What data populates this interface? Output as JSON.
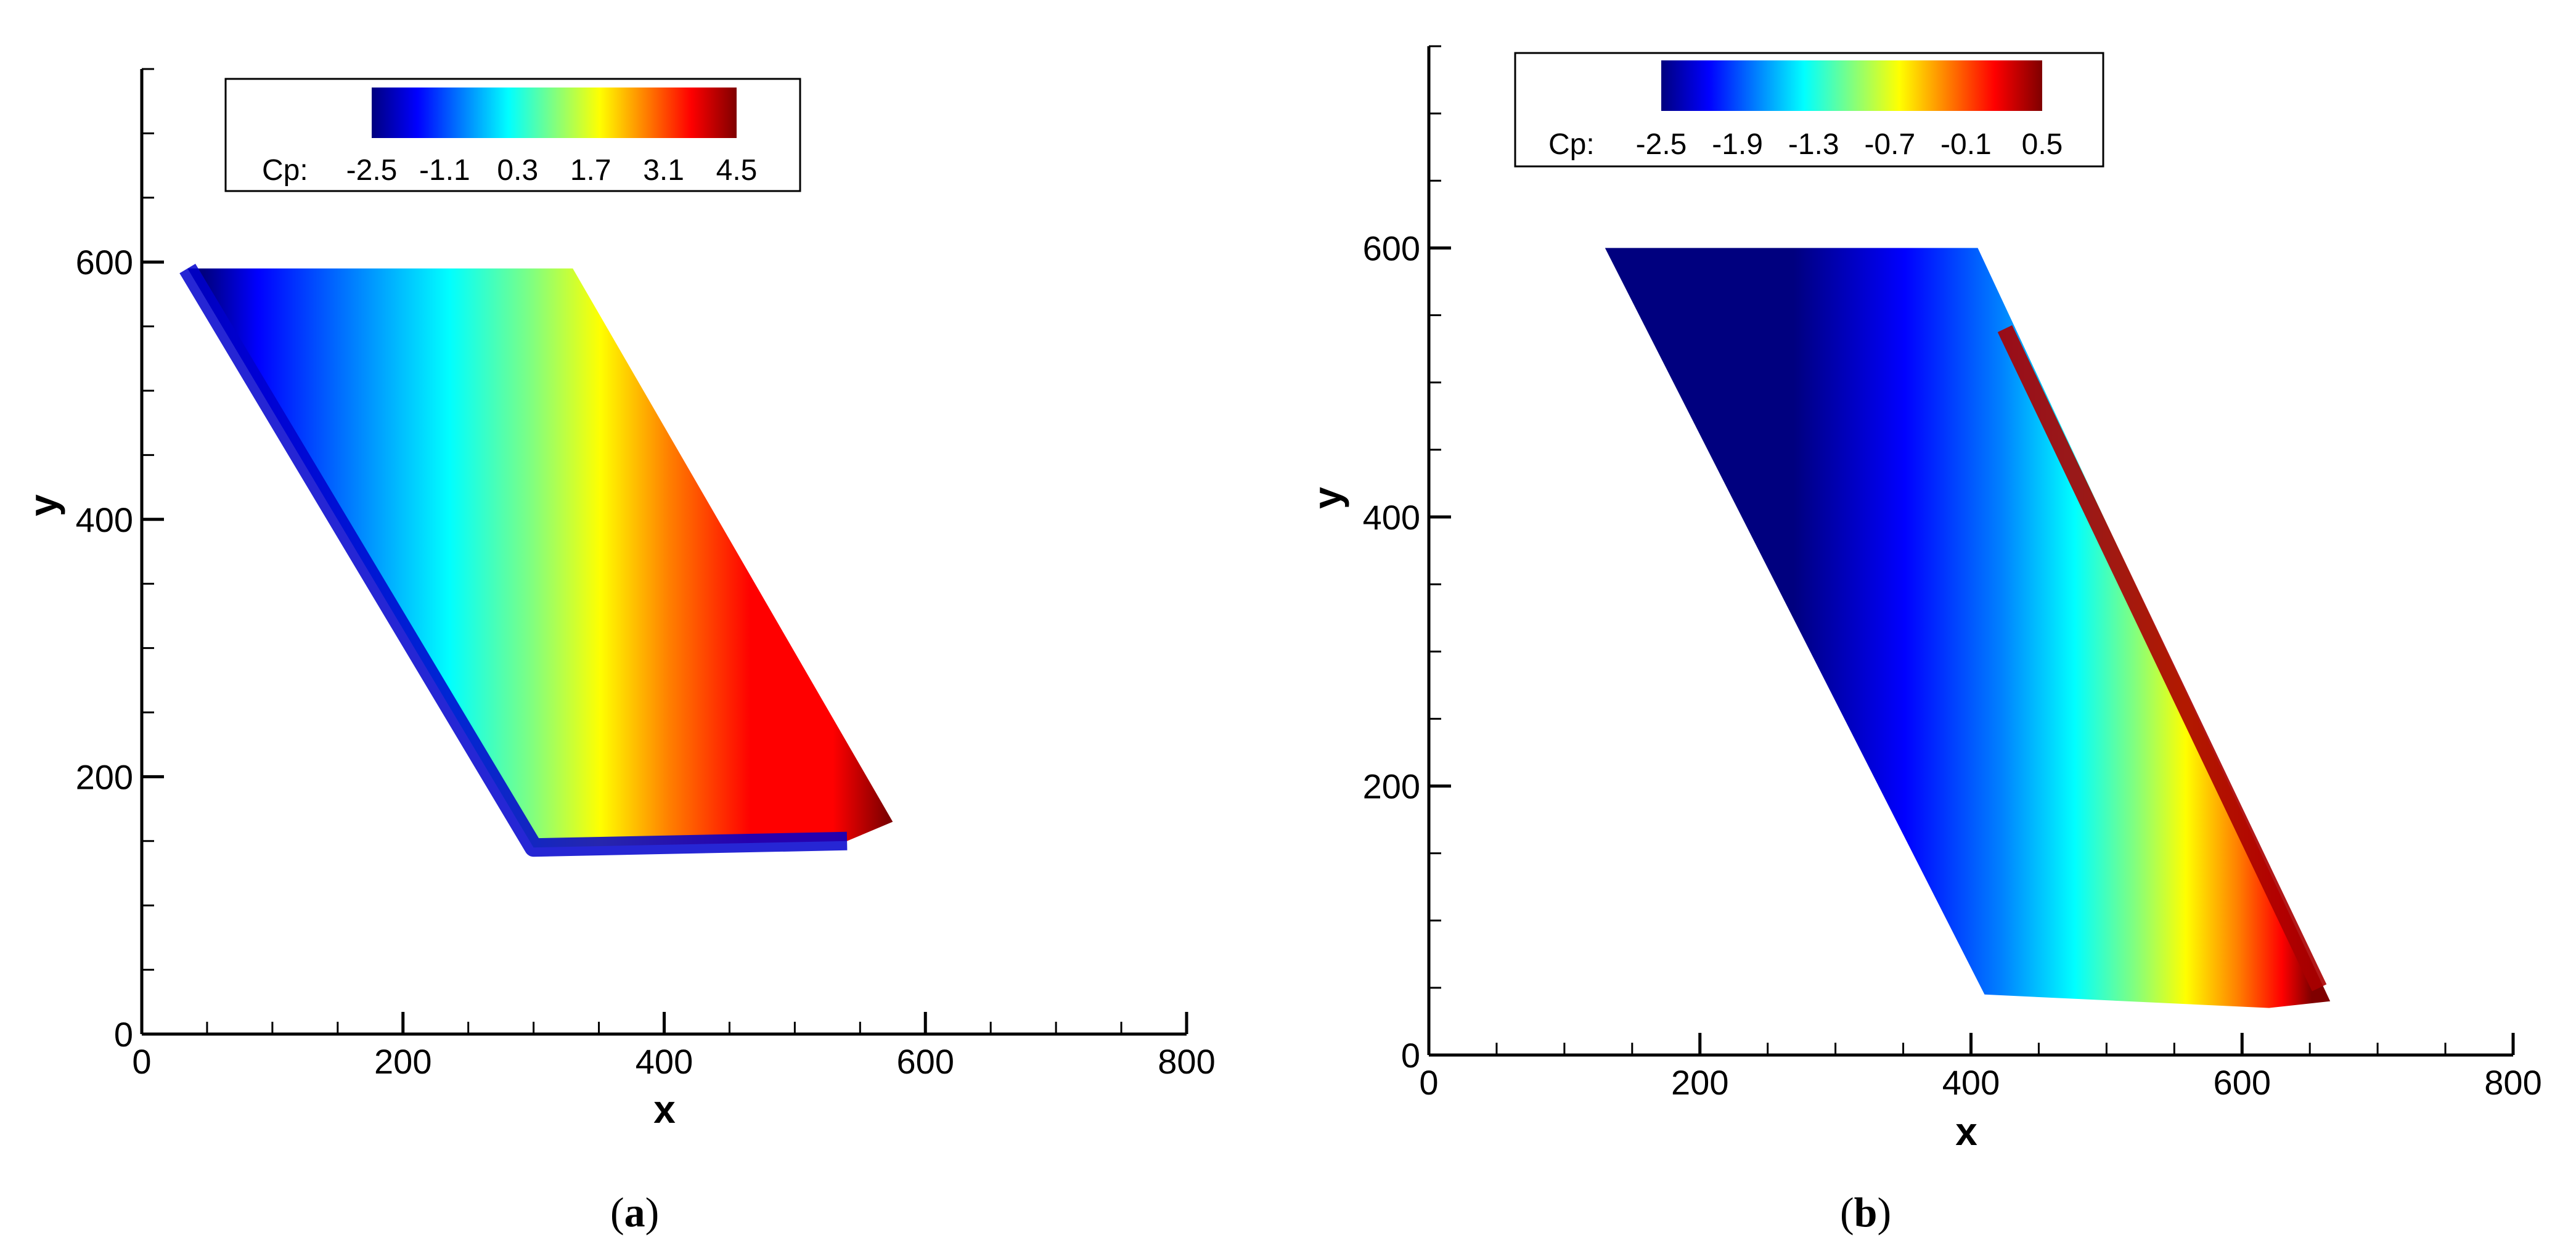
{
  "chart_data": [
    {
      "type": "heatmap",
      "panel": "a",
      "caption_open": "(",
      "caption_letter": "a",
      "caption_close": ")",
      "xlabel": "x",
      "ylabel": "y",
      "xlim": [
        0,
        800
      ],
      "ylim": [
        0,
        750
      ],
      "x_ticks": [
        0,
        200,
        400,
        600,
        800
      ],
      "y_ticks": [
        0,
        200,
        400,
        600
      ],
      "x_tick_labels": [
        "0",
        "200",
        "400",
        "600",
        "800"
      ],
      "y_tick_labels": [
        "0",
        "200",
        "400",
        "600"
      ],
      "legend": {
        "variable": "Cp:",
        "position": "top-left",
        "min": -2.5,
        "max": 4.5,
        "levels": [
          "-2.5",
          "-1.1",
          "0.3",
          "1.7",
          "3.1",
          "4.5"
        ]
      },
      "region_outline": [
        [
          35,
          595
        ],
        [
          330,
          595
        ],
        [
          575,
          165
        ],
        [
          540,
          150
        ],
        [
          300,
          145
        ]
      ],
      "description_bands": {
        "leading_edge": -2.5,
        "mid_chord": 1.0,
        "trailing_edge": 4.5
      }
    },
    {
      "type": "heatmap",
      "panel": "b",
      "caption_open": "(",
      "caption_letter": "b",
      "caption_close": ")",
      "xlabel": "x",
      "ylabel": "y",
      "xlim": [
        0,
        800
      ],
      "ylim": [
        0,
        750
      ],
      "x_ticks": [
        0,
        200,
        400,
        600,
        800
      ],
      "y_ticks": [
        0,
        200,
        400,
        600
      ],
      "x_tick_labels": [
        "0",
        "200",
        "400",
        "600",
        "800"
      ],
      "y_tick_labels": [
        "0",
        "200",
        "400",
        "600"
      ],
      "legend": {
        "variable": "Cp:",
        "position": "top-left",
        "min": -2.5,
        "max": 0.5,
        "levels": [
          "-2.5",
          "-1.9",
          "-1.3",
          "-0.7",
          "-0.1",
          "0.5"
        ]
      },
      "region_outline": [
        [
          130,
          600
        ],
        [
          405,
          600
        ],
        [
          665,
          40
        ],
        [
          620,
          35
        ],
        [
          410,
          45
        ]
      ],
      "description_bands": {
        "leading_edge": -2.5,
        "mid_chord": -1.5,
        "trailing_edge": 0.5
      }
    }
  ],
  "colors": {
    "jet": [
      "#00007f",
      "#0000ff",
      "#0080ff",
      "#00ffff",
      "#80ff80",
      "#ffff00",
      "#ff8000",
      "#ff0000",
      "#7f0000"
    ]
  }
}
